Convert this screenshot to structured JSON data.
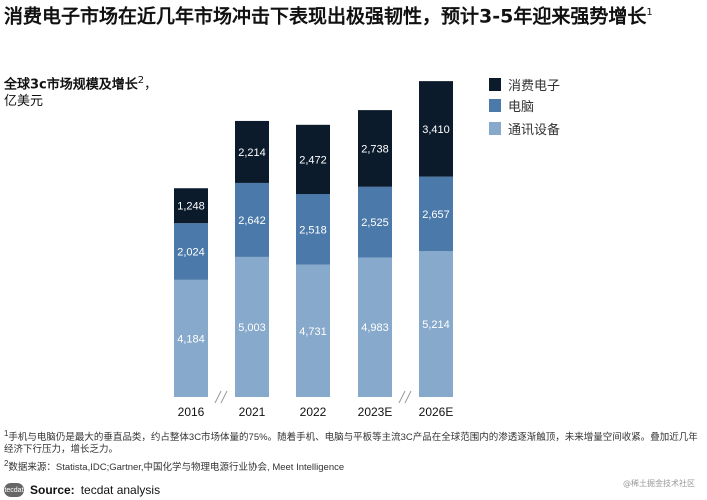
{
  "title": "消费电子市场在近几年市场冲击下表现出极强韧性，预计3-5年迎来强势增长",
  "title_sup": "1",
  "chart_data": {
    "type": "bar",
    "stacked": true,
    "title": "全球3c市场规模及增长",
    "title_sup": "2",
    "unit": "，亿美元",
    "unit_line2": "亿美元",
    "categories": [
      "2016",
      "2021",
      "2022",
      "2023E",
      "2026E"
    ],
    "series": [
      {
        "name": "通讯设备",
        "color": "#87a9cb",
        "values": [
          4184,
          5003,
          4731,
          4983,
          5214
        ]
      },
      {
        "name": "电脑",
        "color": "#4b79a9",
        "values": [
          2024,
          2642,
          2518,
          2525,
          2657
        ]
      },
      {
        "name": "消费电子",
        "color": "#0c1b2b",
        "values": [
          1248,
          2214,
          2472,
          2738,
          3410
        ]
      }
    ],
    "axis_breaks": [
      "2016-2021",
      "2023E-2026E"
    ],
    "legend": "top-right",
    "grid": false
  },
  "notes": {
    "n1": "手机与电脑仍是最大的垂直品类，约占整体3C市场体量的75%。随着手机、电脑与平板等主流3C产品在全球范围内的渗透逐渐触顶，未来增量空间收紧。叠加近几年经济下行压力，增长乏力。",
    "n2": "数据来源：Statista,IDC;Gartner,中国化学与物理电源行业协会, Meet Intelligence"
  },
  "source": {
    "label": "Source:",
    "text": " tecdat analysis",
    "logo": "tecdat"
  },
  "watermark": "@稀土掘金技术社区"
}
